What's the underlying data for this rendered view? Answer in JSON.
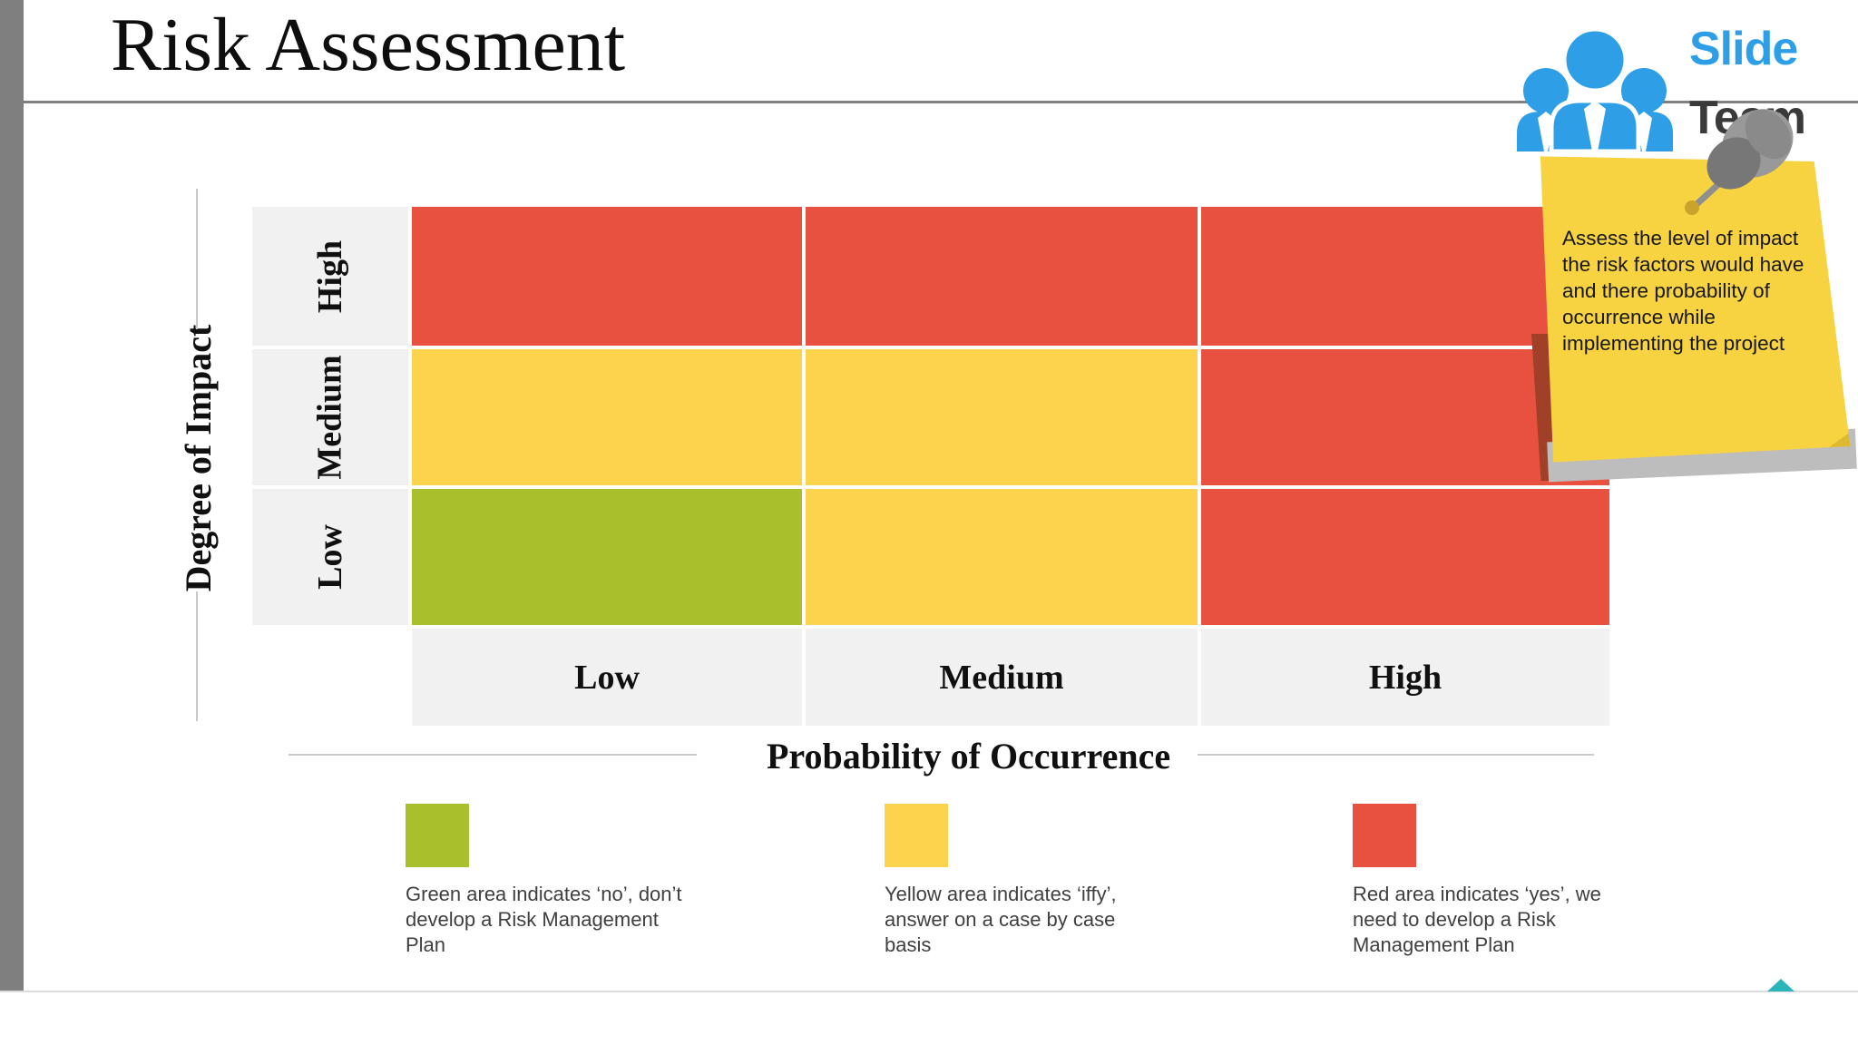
{
  "slide": {
    "title": "Risk Assessment",
    "brand": {
      "line1": "Slide",
      "line2": "Team"
    },
    "note": {
      "text": "Assess the level of impact\nthe risk factors would have\nand there probability of\noccurrence while\nimplementing the project"
    }
  },
  "chart_data": {
    "type": "heatmap",
    "title": "Risk Assessment",
    "x_axis": {
      "label": "Probability of Occurrence",
      "categories": [
        "Low",
        "Medium",
        "High"
      ]
    },
    "y_axis": {
      "label": "Degree of Impact",
      "categories": [
        "High",
        "Medium",
        "Low"
      ]
    },
    "rows": [
      [
        "red",
        "red",
        "red"
      ],
      [
        "yellow",
        "yellow",
        "red"
      ],
      [
        "green",
        "yellow",
        "red"
      ]
    ],
    "legend": [
      {
        "color": "green",
        "text": "Green area indicates ‘no’, don’t\ndevelop a Risk Management\nPlan"
      },
      {
        "color": "yellow",
        "text": "Yellow area indicates ‘iffy’,\nanswer on a case by case\nbasis"
      },
      {
        "color": "red",
        "text": "Red area indicates ‘yes’, we\nneed to develop a Risk\nManagement Plan"
      }
    ]
  },
  "colors": {
    "red": "#E85140",
    "yellow": "#FBD34D",
    "green": "#A9BF2B",
    "cell_label_bg": "#F1F1F1",
    "note_yellow": "#F7D341",
    "logo_blue": "#2E9FE6",
    "logo_dark": "#3A3A3A",
    "accent_teal": "#2AB5B8",
    "bar_gray": "#7F7F7F"
  }
}
